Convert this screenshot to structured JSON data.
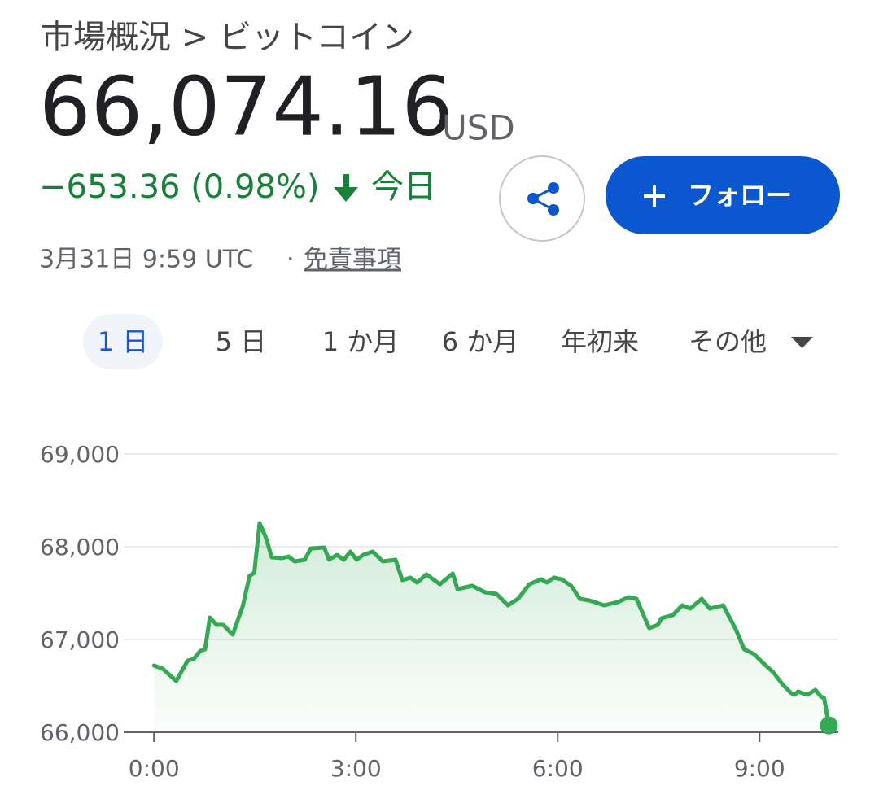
{
  "header": {
    "breadcrumb": "市場概況 > ビットコイン",
    "price": "66,074.16",
    "currency": "USD",
    "change": "−653.36 (0.98%)",
    "period": "今日",
    "timestamp": "3月31日 9:59 UTC",
    "separator": "·",
    "disclaimer": "免責事項",
    "follow_button": "フォロー"
  },
  "tabs": [
    "1 日",
    "5 日",
    "1 か月",
    "6 か月",
    "年初来",
    "その他"
  ],
  "chart_data": {
    "type": "line",
    "color": "#34a853",
    "fill": true,
    "grid": true,
    "x": [
      0,
      0.13,
      0.33,
      0.5,
      0.59,
      0.69,
      0.76,
      0.83,
      0.93,
      1.03,
      1.17,
      1.32,
      1.42,
      1.49,
      1.57,
      1.66,
      1.75,
      1.9,
      2.0,
      2.09,
      2.24,
      2.33,
      2.53,
      2.6,
      2.72,
      2.82,
      2.92,
      3.01,
      3.11,
      3.25,
      3.4,
      3.59,
      3.69,
      3.81,
      3.91,
      4.05,
      4.25,
      4.44,
      4.51,
      4.73,
      4.92,
      5.09,
      5.26,
      5.41,
      5.58,
      5.75,
      5.84,
      5.94,
      6.06,
      6.2,
      6.33,
      6.47,
      6.69,
      6.9,
      7.05,
      7.17,
      7.36,
      7.49,
      7.54,
      7.71,
      7.85,
      7.97,
      8.14,
      8.26,
      8.46,
      8.65,
      8.77,
      8.92,
      9.04,
      9.2,
      9.35,
      9.47,
      9.52,
      9.57,
      9.71,
      9.83,
      9.91,
      9.96,
      10.03
    ],
    "values": [
      66719,
      66684,
      66553,
      66772,
      66789,
      66877,
      66895,
      67237,
      67158,
      67158,
      67053,
      67360,
      67684,
      67719,
      68254,
      68105,
      67886,
      67877,
      67895,
      67842,
      67860,
      67982,
      67991,
      67860,
      67912,
      67860,
      67947,
      67860,
      67912,
      67947,
      67842,
      67860,
      67640,
      67667,
      67614,
      67702,
      67596,
      67711,
      67544,
      67579,
      67509,
      67491,
      67368,
      67439,
      67596,
      67649,
      67614,
      67667,
      67649,
      67579,
      67439,
      67421,
      67368,
      67404,
      67456,
      67439,
      67123,
      67158,
      67228,
      67263,
      67368,
      67333,
      67439,
      67333,
      67368,
      67105,
      66895,
      66842,
      66754,
      66649,
      66509,
      66421,
      66404,
      66439,
      66404,
      66456,
      66386,
      66368,
      66074
    ],
    "xlim": [
      -0.45,
      10.17
    ],
    "ylim": [
      66000,
      69000
    ],
    "xticks": [
      {
        "value": 0,
        "label": "0:00"
      },
      {
        "value": 3,
        "label": "3:00"
      },
      {
        "value": 6,
        "label": "6:00"
      },
      {
        "value": 9,
        "label": "9:00"
      }
    ],
    "yticks": [
      {
        "value": 66000,
        "label": "66,000"
      },
      {
        "value": 67000,
        "label": "67,000"
      },
      {
        "value": 68000,
        "label": "68,000"
      },
      {
        "value": 69000,
        "label": "69,000"
      }
    ]
  }
}
